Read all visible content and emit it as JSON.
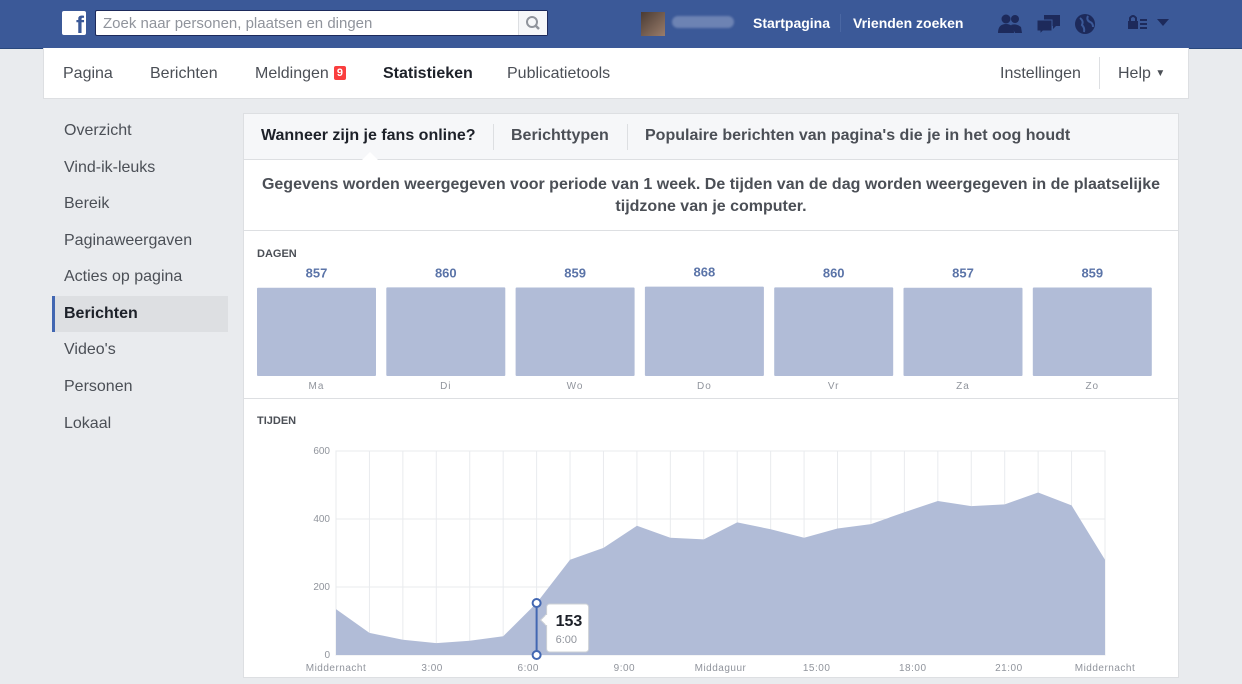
{
  "topbar": {
    "search_placeholder": "Zoek naar personen, plaatsen en dingen",
    "links": [
      "Startpagina",
      "Vrienden zoeken"
    ]
  },
  "pagenav": {
    "items": [
      "Pagina",
      "Berichten",
      "Meldingen",
      "Statistieken",
      "Publicatietools"
    ],
    "notifications_count": "9",
    "settings": "Instellingen",
    "help": "Help"
  },
  "sidebar": {
    "items": [
      "Overzicht",
      "Vind-ik-leuks",
      "Bereik",
      "Paginaweergaven",
      "Acties op pagina",
      "Berichten",
      "Video's",
      "Personen",
      "Lokaal"
    ],
    "active": "Berichten"
  },
  "tabs": [
    "Wanneer zijn je fans online?",
    "Berichttypen",
    "Populaire berichten van pagina's die je in het oog houdt"
  ],
  "info_text": "Gegevens worden weergegeven voor periode van 1 week. De tijden van de dag worden weergegeven in de plaatselijke tijdzone van je computer.",
  "colors": {
    "topbar": "#3b5998",
    "fill": "#b1bcd7",
    "accent": "#4267b2"
  },
  "chart_data": [
    {
      "type": "bar",
      "title": "DAGEN",
      "categories": [
        "Ma",
        "Di",
        "Wo",
        "Do",
        "Vr",
        "Za",
        "Zo"
      ],
      "values": [
        857,
        860,
        859,
        868,
        860,
        857,
        859
      ]
    },
    {
      "type": "area",
      "title": "TIJDEN",
      "x_labels": [
        "Middernacht",
        "3:00",
        "6:00",
        "9:00",
        "Middaguur",
        "15:00",
        "18:00",
        "21:00",
        "Middernacht"
      ],
      "x": [
        0,
        1,
        2,
        3,
        4,
        5,
        6,
        7,
        8,
        9,
        10,
        11,
        12,
        13,
        14,
        15,
        16,
        17,
        18,
        19,
        20,
        21,
        22,
        23
      ],
      "values": [
        135,
        65,
        45,
        35,
        42,
        55,
        153,
        280,
        315,
        380,
        345,
        340,
        390,
        370,
        345,
        372,
        385,
        420,
        453,
        438,
        443,
        478,
        440,
        280
      ],
      "y_ticks": [
        0,
        200,
        400,
        600
      ],
      "ylim": [
        0,
        600
      ],
      "grid": true,
      "tooltip": {
        "value": "153",
        "label": "6:00",
        "index": 6
      }
    }
  ]
}
